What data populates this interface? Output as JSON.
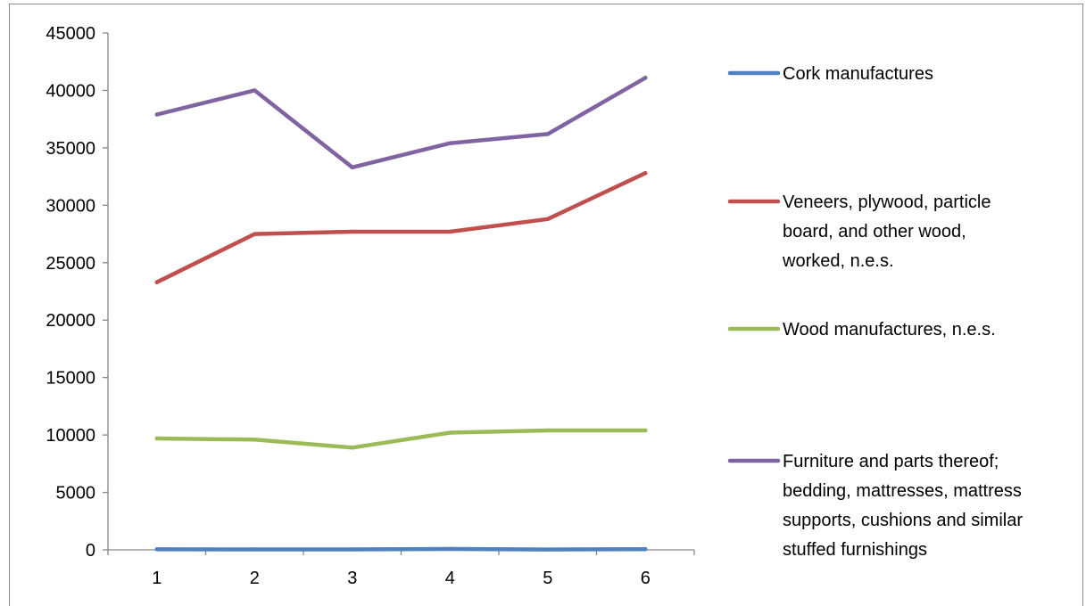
{
  "chart_data": {
    "type": "line",
    "title": "",
    "xlabel": "",
    "ylabel": "",
    "x": [
      1,
      2,
      3,
      4,
      5,
      6
    ],
    "ylim": [
      0,
      45000
    ],
    "yticks": [
      0,
      5000,
      10000,
      15000,
      20000,
      25000,
      30000,
      35000,
      40000,
      45000
    ],
    "grid": false,
    "legend_position": "right",
    "series": [
      {
        "name": "Cork manufactures",
        "legend_lines": [
          "Cork manufactures"
        ],
        "color": "#4f81bd",
        "values": [
          50,
          40,
          40,
          80,
          30,
          60
        ]
      },
      {
        "name": "Veneers, plywood, particle board, and other wood, worked, n.e.s.",
        "legend_lines": [
          "Veneers, plywood, particle",
          "board, and other wood,",
          "worked, n.e.s."
        ],
        "color": "#c0504d",
        "values": [
          23300,
          27500,
          27700,
          27700,
          28800,
          32800
        ]
      },
      {
        "name": "Wood manufactures, n.e.s.",
        "legend_lines": [
          "Wood manufactures, n.e.s."
        ],
        "color": "#9bbb59",
        "values": [
          9700,
          9600,
          8900,
          10200,
          10400,
          10400
        ]
      },
      {
        "name": "Furniture and parts thereof; bedding, mattresses, mattress supports, cushions and similar stuffed furnishings",
        "legend_lines": [
          "Furniture and parts thereof;",
          "bedding, mattresses, mattress",
          "supports, cushions and similar",
          "stuffed furnishings"
        ],
        "color": "#8064a2",
        "values": [
          37900,
          40000,
          33300,
          35400,
          36200,
          41100
        ]
      }
    ]
  }
}
